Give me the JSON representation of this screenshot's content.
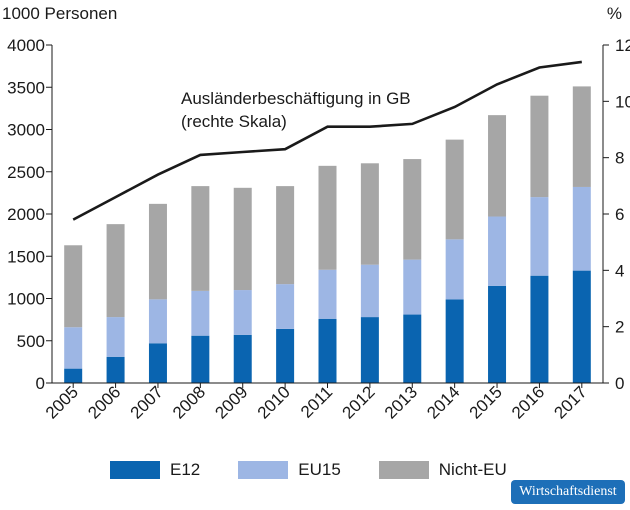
{
  "chart_data": {
    "type": "bar",
    "stacked": true,
    "ylabel_left": "1000 Personen",
    "ylabel_right": "%",
    "ylim": [
      0,
      4000
    ],
    "yticks": [
      0,
      500,
      1000,
      1500,
      2000,
      2500,
      3000,
      3500,
      4000
    ],
    "ylim_right": [
      0,
      12
    ],
    "yticks_right": [
      0,
      2,
      4,
      6,
      8,
      10,
      12
    ],
    "categories": [
      "2005",
      "2006",
      "2007",
      "2008",
      "2009",
      "2010",
      "2011",
      "2012",
      "2013",
      "2014",
      "2015",
      "2016",
      "2017"
    ],
    "series": [
      {
        "name": "E12",
        "color": "#0a64b0",
        "values": [
          170,
          310,
          470,
          560,
          570,
          640,
          760,
          780,
          810,
          990,
          1150,
          1270,
          1330
        ]
      },
      {
        "name": "EU15",
        "color": "#9db6e4",
        "values": [
          490,
          470,
          520,
          530,
          530,
          530,
          580,
          620,
          650,
          710,
          820,
          930,
          990
        ]
      },
      {
        "name": "Nicht-EU",
        "color": "#a6a6a6",
        "values": [
          970,
          1100,
          1130,
          1240,
          1210,
          1160,
          1230,
          1200,
          1190,
          1180,
          1200,
          1200,
          1190
        ]
      }
    ],
    "line": {
      "axis": "right",
      "color": "#1a1a1a",
      "values": [
        5.8,
        6.6,
        7.4,
        8.1,
        8.2,
        8.3,
        9.1,
        9.1,
        9.2,
        9.8,
        10.6,
        11.2,
        11.4
      ],
      "annotation": [
        "Ausländerbeschäftigung  in GB",
        "(rechte Skala)"
      ]
    },
    "legend": "bottom",
    "grid": false
  },
  "brand": {
    "label": "Wirtschaftsdienst",
    "color": "#1d6fb8"
  }
}
